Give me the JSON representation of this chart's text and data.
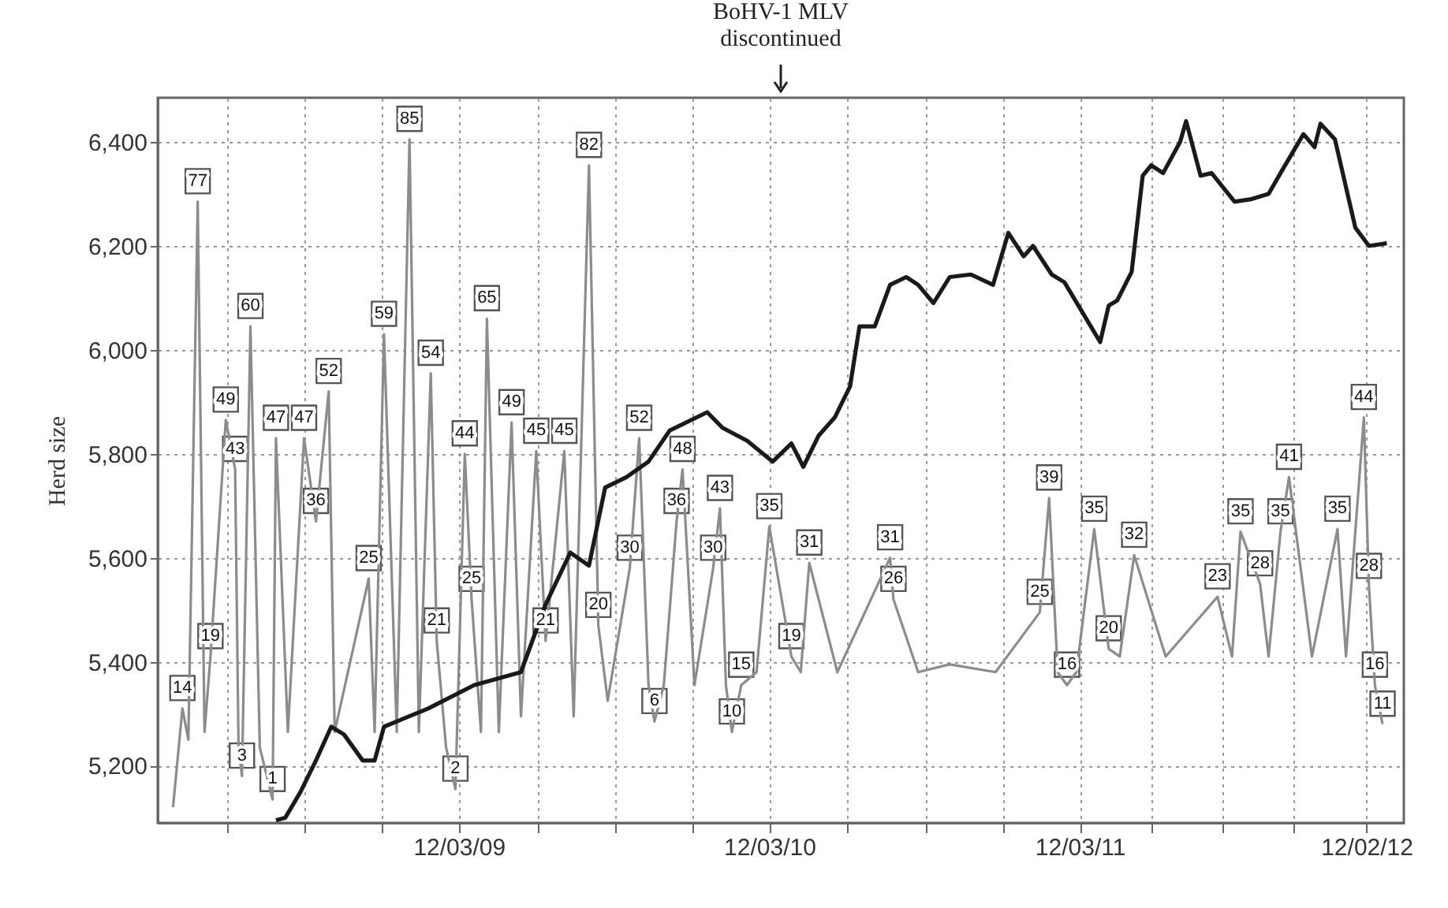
{
  "chart_data": {
    "type": "line",
    "title": "BoHV-1 MLV",
    "ylabel": "Herd size",
    "annotations": [
      "discontinued",
      {
        "text": "14",
        "x": "2008-04-21",
        "y": 5310
      },
      {
        "text": "77",
        "x": "2008-05-09",
        "y": 6285
      },
      {
        "text": "19",
        "x": "2008-05-24",
        "y": 5410
      },
      {
        "text": "49",
        "x": "2008-06-11",
        "y": 5865
      },
      {
        "text": "43",
        "x": "2008-06-22",
        "y": 5770
      },
      {
        "text": "3",
        "x": "2008-06-30",
        "y": 5180
      },
      {
        "text": "60",
        "x": "2008-07-10",
        "y": 6045
      },
      {
        "text": "1",
        "x": "2008-08-05",
        "y": 5135
      },
      {
        "text": "47",
        "x": "2008-08-09",
        "y": 5830
      },
      {
        "text": "47",
        "x": "2008-09-11",
        "y": 5830
      },
      {
        "text": "36",
        "x": "2008-09-25",
        "y": 5670
      },
      {
        "text": "52",
        "x": "2008-10-10",
        "y": 5920
      },
      {
        "text": "25",
        "x": "2008-11-26",
        "y": 5560
      },
      {
        "text": "59",
        "x": "2008-12-14",
        "y": 6030
      },
      {
        "text": "85",
        "x": "2009-01-13",
        "y": 6405
      },
      {
        "text": "54",
        "x": "2009-02-07",
        "y": 5955
      },
      {
        "text": "21",
        "x": "2009-02-14",
        "y": 5440
      },
      {
        "text": "2",
        "x": "2009-03-08",
        "y": 5155
      },
      {
        "text": "44",
        "x": "2009-03-19",
        "y": 5800
      },
      {
        "text": "25",
        "x": "2009-03-27",
        "y": 5520
      },
      {
        "text": "65",
        "x": "2009-04-14",
        "y": 6060
      },
      {
        "text": "49",
        "x": "2009-05-13",
        "y": 5860
      },
      {
        "text": "45",
        "x": "2009-06-11",
        "y": 5805
      },
      {
        "text": "21",
        "x": "2009-06-22",
        "y": 5440
      },
      {
        "text": "45",
        "x": "2009-07-14",
        "y": 5805
      },
      {
        "text": "82",
        "x": "2009-08-12",
        "y": 6355
      },
      {
        "text": "20",
        "x": "2009-08-23",
        "y": 5470
      },
      {
        "text": "30",
        "x": "2009-09-29",
        "y": 5580
      },
      {
        "text": "52",
        "x": "2009-10-10",
        "y": 5830
      },
      {
        "text": "6",
        "x": "2009-10-28",
        "y": 5285
      },
      {
        "text": "36",
        "x": "2009-11-23",
        "y": 5670
      },
      {
        "text": "48",
        "x": "2009-11-30",
        "y": 5770
      },
      {
        "text": "30",
        "x": "2010-01-05",
        "y": 5580
      },
      {
        "text": "43",
        "x": "2010-01-13",
        "y": 5695
      },
      {
        "text": "10",
        "x": "2010-01-27",
        "y": 5265
      },
      {
        "text": "15",
        "x": "2010-02-07",
        "y": 5355
      },
      {
        "text": "35",
        "x": "2010-03-12",
        "y": 5660
      },
      {
        "text": "19",
        "x": "2010-04-07",
        "y": 5410
      },
      {
        "text": "31",
        "x": "2010-04-28",
        "y": 5590
      },
      {
        "text": "31",
        "x": "2010-08-01",
        "y": 5600
      },
      {
        "text": "26",
        "x": "2010-08-05",
        "y": 5520
      },
      {
        "text": "25",
        "x": "2011-01-24",
        "y": 5495
      },
      {
        "text": "39",
        "x": "2011-02-04",
        "y": 5715
      },
      {
        "text": "16",
        "x": "2011-02-25",
        "y": 5355
      },
      {
        "text": "35",
        "x": "2011-03-29",
        "y": 5655
      },
      {
        "text": "20",
        "x": "2011-04-15",
        "y": 5425
      },
      {
        "text": "32",
        "x": "2011-05-15",
        "y": 5605
      },
      {
        "text": "23",
        "x": "2011-08-21",
        "y": 5525
      },
      {
        "text": "35",
        "x": "2011-09-17",
        "y": 5650
      },
      {
        "text": "28",
        "x": "2011-10-10",
        "y": 5550
      },
      {
        "text": "35",
        "x": "2011-11-03",
        "y": 5650
      },
      {
        "text": "41",
        "x": "2011-11-13",
        "y": 5755
      },
      {
        "text": "35",
        "x": "2012-01-09",
        "y": 5655
      },
      {
        "text": "44",
        "x": "2012-02-09",
        "y": 5870
      },
      {
        "text": "28",
        "x": "2012-02-15",
        "y": 5545
      },
      {
        "text": "16",
        "x": "2012-02-22",
        "y": 5355
      },
      {
        "text": "11",
        "x": "2012-03-02",
        "y": 5280
      }
    ],
    "xlim": [
      "2008-03-23",
      "2012-03-27"
    ],
    "xticks": [
      {
        "value": "2008-06-12",
        "label": null
      },
      {
        "value": "2008-09-12",
        "label": null
      },
      {
        "value": "2008-12-12",
        "label": null
      },
      {
        "value": "2009-03-12",
        "label": "12/03/09"
      },
      {
        "value": "2009-06-12",
        "label": null
      },
      {
        "value": "2009-09-12",
        "label": null
      },
      {
        "value": "2009-12-12",
        "label": null
      },
      {
        "value": "2010-03-12",
        "label": "12/03/10"
      },
      {
        "value": "2010-06-12",
        "label": null
      },
      {
        "value": "2010-09-12",
        "label": null
      },
      {
        "value": "2010-12-12",
        "label": null
      },
      {
        "value": "2011-03-12",
        "label": "12/03/11"
      },
      {
        "value": "2011-06-04",
        "label": null
      },
      {
        "value": "2011-08-27",
        "label": null
      },
      {
        "value": "2011-11-19",
        "label": null
      },
      {
        "value": "2012-02-12",
        "label": "12/02/12"
      }
    ],
    "ylim": [
      5090,
      6485
    ],
    "yticks": [
      {
        "value": 5200,
        "label": "5,200"
      },
      {
        "value": 5400,
        "label": "5,400"
      },
      {
        "value": 5600,
        "label": "5,600"
      },
      {
        "value": 5800,
        "label": "5,800"
      },
      {
        "value": 6000,
        "label": "6,000"
      },
      {
        "value": 6200,
        "label": "6,200"
      },
      {
        "value": 6400,
        "label": "6,400"
      }
    ],
    "grid": true,
    "line_style": "solid",
    "series": [
      {
        "color": "#8c8c8c",
        "x": [
          "2008-04-10",
          "2008-04-21",
          "2008-04-28",
          "2008-05-09",
          "2008-05-17",
          "2008-05-24",
          "2008-06-11",
          "2008-06-22",
          "2008-06-26",
          "2008-06-30",
          "2008-07-10",
          "2008-07-21",
          "2008-08-05",
          "2008-08-09",
          "2008-08-23",
          "2008-09-11",
          "2008-09-25",
          "2008-10-10",
          "2008-10-17",
          "2008-11-26",
          "2008-12-03",
          "2008-12-14",
          "2008-12-29",
          "2009-01-13",
          "2009-01-24",
          "2009-02-07",
          "2009-02-14",
          "2009-02-25",
          "2009-03-08",
          "2009-03-19",
          "2009-03-27",
          "2009-04-07",
          "2009-04-14",
          "2009-04-28",
          "2009-05-13",
          "2009-05-24",
          "2009-06-11",
          "2009-06-22",
          "2009-07-14",
          "2009-07-25",
          "2009-08-12",
          "2009-08-23",
          "2009-09-03",
          "2009-09-29",
          "2009-10-10",
          "2009-10-21",
          "2009-10-28",
          "2009-11-08",
          "2009-11-23",
          "2009-11-30",
          "2009-12-14",
          "2010-01-05",
          "2010-01-13",
          "2010-01-20",
          "2010-01-27",
          "2010-02-07",
          "2010-02-25",
          "2010-03-12",
          "2010-04-07",
          "2010-04-18",
          "2010-04-28",
          "2010-05-31",
          "2010-08-01",
          "2010-08-05",
          "2010-09-03",
          "2010-10-10",
          "2010-12-03",
          "2011-01-24",
          "2011-02-04",
          "2011-02-14",
          "2011-02-25",
          "2011-03-08",
          "2011-03-29",
          "2011-04-15",
          "2011-04-28",
          "2011-05-15",
          "2011-06-21",
          "2011-08-21",
          "2011-09-07",
          "2011-09-17",
          "2011-10-10",
          "2011-10-20",
          "2011-11-03",
          "2011-11-13",
          "2011-12-10",
          "2012-01-09",
          "2012-01-19",
          "2012-02-09",
          "2012-02-15",
          "2012-02-22",
          "2012-03-02"
        ],
        "values": [
          5120,
          5310,
          5250,
          6285,
          5265,
          5410,
          5865,
          5770,
          5235,
          5180,
          6045,
          5235,
          5135,
          5830,
          5265,
          5830,
          5670,
          5920,
          5265,
          5560,
          5265,
          6030,
          5265,
          6405,
          5265,
          5955,
          5440,
          5235,
          5155,
          5800,
          5520,
          5265,
          6060,
          5265,
          5860,
          5295,
          5805,
          5440,
          5805,
          5295,
          6355,
          5470,
          5325,
          5580,
          5830,
          5355,
          5285,
          5355,
          5670,
          5770,
          5355,
          5580,
          5695,
          5355,
          5265,
          5355,
          5380,
          5660,
          5410,
          5380,
          5590,
          5380,
          5600,
          5520,
          5380,
          5395,
          5380,
          5495,
          5715,
          5380,
          5355,
          5380,
          5655,
          5425,
          5410,
          5605,
          5410,
          5525,
          5410,
          5650,
          5550,
          5410,
          5650,
          5755,
          5410,
          5655,
          5410,
          5870,
          5545,
          5355,
          5280
        ]
      },
      {
        "color": "#1a1a1a",
        "x": [
          "2008-08-09",
          "2008-08-20",
          "2008-09-07",
          "2008-09-25",
          "2008-10-13",
          "2008-10-28",
          "2008-11-19",
          "2008-12-03",
          "2008-12-14",
          "2009-02-04",
          "2009-03-30",
          "2009-05-24",
          "2009-06-22",
          "2009-07-21",
          "2009-08-12",
          "2009-08-31",
          "2009-09-25",
          "2009-10-21",
          "2009-11-15",
          "2009-12-29",
          "2010-01-16",
          "2010-02-14",
          "2010-03-16",
          "2010-04-07",
          "2010-04-21",
          "2010-05-09",
          "2010-05-28",
          "2010-06-15",
          "2010-06-26",
          "2010-07-14",
          "2010-08-01",
          "2010-08-20",
          "2010-09-03",
          "2010-09-21",
          "2010-10-10",
          "2010-11-04",
          "2010-11-30",
          "2010-12-18",
          "2011-01-05",
          "2011-01-16",
          "2011-02-07",
          "2011-02-22",
          "2011-03-25",
          "2011-04-05",
          "2011-04-15",
          "2011-04-25",
          "2011-05-12",
          "2011-05-25",
          "2011-06-04",
          "2011-06-18",
          "2011-07-08",
          "2011-07-15",
          "2011-08-01",
          "2011-08-14",
          "2011-09-10",
          "2011-09-30",
          "2011-10-20",
          "2011-11-03",
          "2011-11-30",
          "2011-12-13",
          "2011-12-20",
          "2012-01-06",
          "2012-01-30",
          "2012-02-15",
          "2012-03-07"
        ],
        "values": [
          5095,
          5100,
          5150,
          5210,
          5275,
          5260,
          5210,
          5210,
          5275,
          5310,
          5355,
          5380,
          5510,
          5610,
          5585,
          5735,
          5755,
          5785,
          5845,
          5880,
          5850,
          5825,
          5785,
          5820,
          5775,
          5835,
          5870,
          5930,
          6045,
          6045,
          6125,
          6140,
          6125,
          6090,
          6140,
          6145,
          6125,
          6225,
          6180,
          6200,
          6145,
          6130,
          6045,
          6015,
          6085,
          6095,
          6150,
          6335,
          6355,
          6340,
          6400,
          6440,
          6335,
          6340,
          6285,
          6290,
          6300,
          6340,
          6415,
          6390,
          6435,
          6405,
          6235,
          6200,
          6205
        ]
      }
    ]
  }
}
